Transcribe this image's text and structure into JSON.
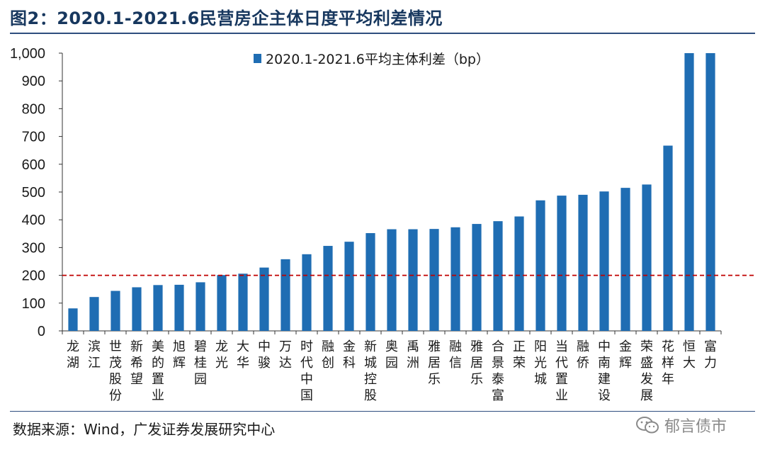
{
  "figure_title": "图2：2020.1-2021.6民营房企主体日度平均利差情况",
  "source_text": "数据来源：Wind，广发证券发展研究中心",
  "watermark_text": "郁言债市",
  "watermark_icon": "wechat-icon",
  "colors": {
    "bar": "#1f6db3",
    "reference_line": "#c00000",
    "title": "#17375e",
    "axis": "#333333"
  },
  "chart_data": {
    "type": "bar",
    "legend_position": "top-center",
    "grid": false,
    "categories": [
      "龙湖",
      "滨江",
      "世茂股份",
      "新希望",
      "美的置业",
      "旭辉",
      "碧桂园",
      "龙光",
      "大华",
      "中骏",
      "万达",
      "时代中国",
      "融创",
      "金科",
      "新城控股",
      "奥园",
      "禹洲",
      "雅居乐",
      "融信",
      "雅居乐",
      "合景泰富",
      "正荣",
      "阳光城",
      "当代置业",
      "融侨",
      "中南建设",
      "金辉",
      "荣盛发展",
      "花样年",
      "恒大",
      "富力"
    ],
    "series": [
      {
        "name": "2020.1-2021.6平均主体利差（bp）",
        "values": [
          81,
          122,
          144,
          157,
          165,
          166,
          175,
          201,
          206,
          228,
          258,
          276,
          306,
          321,
          352,
          366,
          366,
          367,
          373,
          385,
          395,
          412,
          470,
          487,
          490,
          502,
          515,
          527,
          667,
          1000,
          1000
        ]
      }
    ],
    "ylim": [
      0,
      1000
    ],
    "yticks": [
      0,
      100,
      200,
      300,
      400,
      500,
      600,
      700,
      800,
      900,
      1000
    ],
    "ytick_labels": [
      "0",
      "100",
      "200",
      "300",
      "400",
      "500",
      "600",
      "700",
      "800",
      "900",
      "1,000"
    ],
    "reference_line": {
      "y": 200,
      "style": "dashed"
    }
  }
}
